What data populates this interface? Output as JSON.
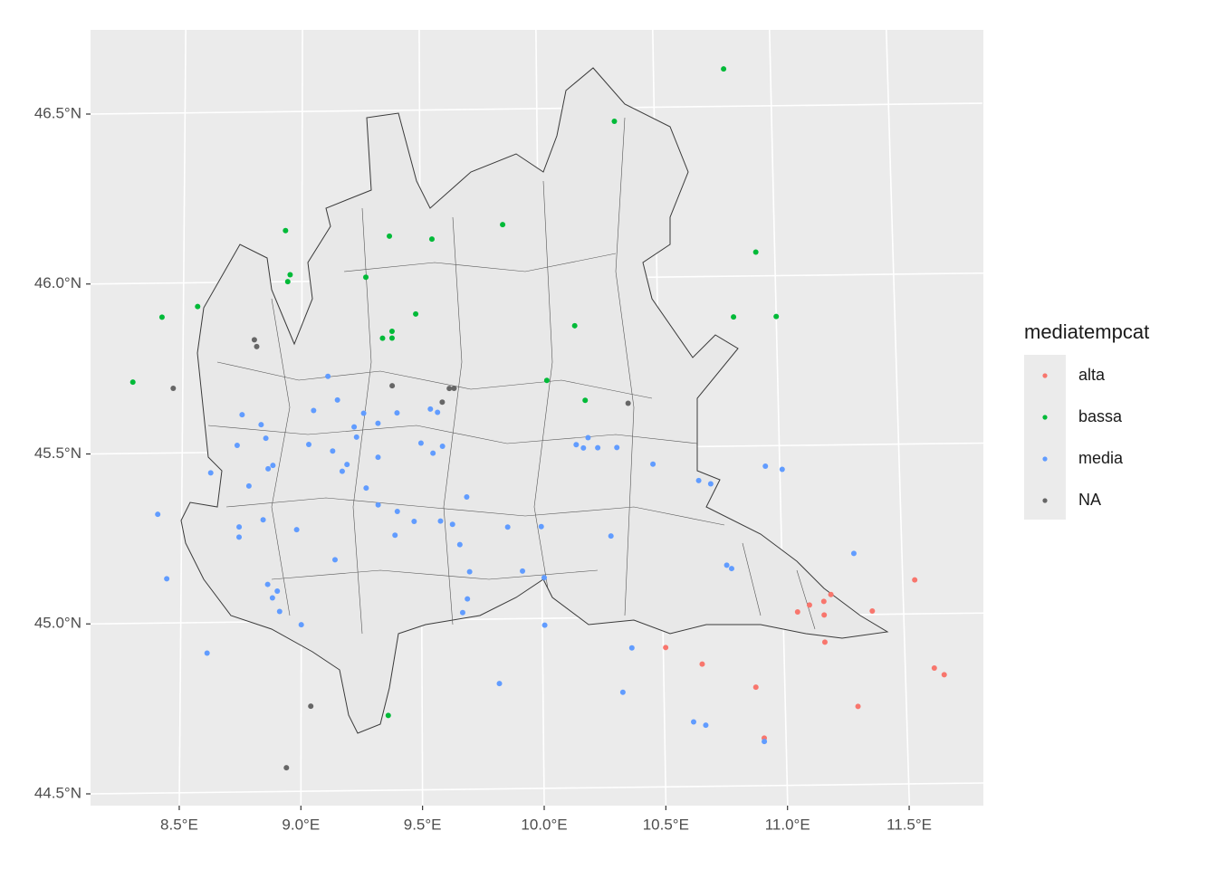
{
  "chart_data": {
    "type": "map",
    "xticks": [
      {
        "value": 8.5,
        "label": "8.5°E"
      },
      {
        "value": 9.0,
        "label": "9.0°E"
      },
      {
        "value": 9.5,
        "label": "9.5°E"
      },
      {
        "value": 10.0,
        "label": "10.0°E"
      },
      {
        "value": 10.5,
        "label": "10.5°E"
      },
      {
        "value": 11.0,
        "label": "11.0°E"
      },
      {
        "value": 11.5,
        "label": "11.5°E"
      }
    ],
    "yticks": [
      {
        "value": 44.5,
        "label": "44.5°N"
      },
      {
        "value": 45.0,
        "label": "45.0°N"
      },
      {
        "value": 45.5,
        "label": "45.5°N"
      },
      {
        "value": 46.0,
        "label": "46.0°N"
      },
      {
        "value": 46.5,
        "label": "46.5°N"
      }
    ],
    "grid": true,
    "legend_title": "mediatempcat",
    "legend": "right",
    "series": [
      {
        "name": "alta",
        "color": "#F8766D",
        "x": [
          10.51,
          10.66,
          10.88,
          10.91,
          11.06,
          11.11,
          11.17,
          11.2,
          11.17,
          11.17,
          11.37,
          11.3,
          11.55,
          11.62,
          11.66
        ],
        "y": [
          44.91,
          44.86,
          44.79,
          44.64,
          45.01,
          45.03,
          45.04,
          45.06,
          45.0,
          44.92,
          45.01,
          44.73,
          45.1,
          44.84,
          44.82
        ]
      },
      {
        "name": "bassa",
        "color": "#00BA38",
        "x": [
          10.8,
          10.33,
          8.93,
          9.85,
          9.37,
          9.55,
          8.95,
          8.94,
          9.27,
          8.56,
          8.41,
          9.48,
          9.38,
          9.38,
          9.34,
          10.15,
          10.92,
          10.82,
          11.0,
          8.29,
          10.03,
          10.19,
          9.36
        ],
        "y": [
          46.61,
          46.46,
          46.15,
          46.16,
          46.13,
          46.12,
          46.02,
          46.0,
          46.01,
          45.93,
          45.9,
          45.9,
          45.85,
          45.83,
          45.83,
          45.86,
          46.07,
          45.88,
          45.88,
          45.71,
          45.7,
          45.64,
          44.72
        ]
      },
      {
        "name": "media",
        "color": "#619CFF",
        "x": [
          9.11,
          9.15,
          8.75,
          9.05,
          9.4,
          9.57,
          8.83,
          8.85,
          9.22,
          8.73,
          9.03,
          9.23,
          9.32,
          9.17,
          9.19,
          8.88,
          9.5,
          9.55,
          9.59,
          9.54,
          9.32,
          9.26,
          9.13,
          10.2,
          10.18,
          10.24,
          10.32,
          10.15,
          8.62,
          8.78,
          8.86,
          9.27,
          9.32,
          9.4,
          9.47,
          9.69,
          9.58,
          9.86,
          10.0,
          9.39,
          9.63,
          9.66,
          10.29,
          10.47,
          10.66,
          10.71,
          10.94,
          11.01,
          11.3,
          8.4,
          8.74,
          8.74,
          8.84,
          8.98,
          8.44,
          9.14,
          9.7,
          9.92,
          10.01,
          9.69,
          9.67,
          8.86,
          8.88,
          8.91,
          9.0,
          10.01,
          10.37,
          10.77,
          10.79,
          8.61,
          9.82,
          10.33,
          10.62,
          10.67,
          10.91,
          8.9
        ],
        "y": [
          45.72,
          45.65,
          45.61,
          45.62,
          45.61,
          45.61,
          45.58,
          45.54,
          45.57,
          45.52,
          45.52,
          45.54,
          45.48,
          45.44,
          45.46,
          45.46,
          45.52,
          45.49,
          45.51,
          45.62,
          45.58,
          45.61,
          45.5,
          45.53,
          45.5,
          45.5,
          45.5,
          45.51,
          45.44,
          45.4,
          45.45,
          45.39,
          45.34,
          45.32,
          45.29,
          45.36,
          45.29,
          45.27,
          45.27,
          45.25,
          45.28,
          45.22,
          45.24,
          45.45,
          45.4,
          45.39,
          45.44,
          45.43,
          45.18,
          45.32,
          45.28,
          45.25,
          45.3,
          45.27,
          45.13,
          45.18,
          45.14,
          45.14,
          45.12,
          45.06,
          45.02,
          45.11,
          45.07,
          45.03,
          44.99,
          44.98,
          44.91,
          45.15,
          45.14,
          44.91,
          44.81,
          44.78,
          44.69,
          44.68,
          44.63,
          45.09
        ]
      },
      {
        "name": "NA",
        "color": "#666666",
        "x": [
          8.8,
          8.81,
          8.46,
          9.38,
          9.59,
          9.62,
          9.64,
          10.37,
          9.04,
          8.94
        ],
        "y": [
          45.83,
          45.81,
          45.69,
          45.69,
          45.64,
          45.68,
          45.68,
          45.63,
          44.75,
          44.57
        ]
      }
    ]
  }
}
